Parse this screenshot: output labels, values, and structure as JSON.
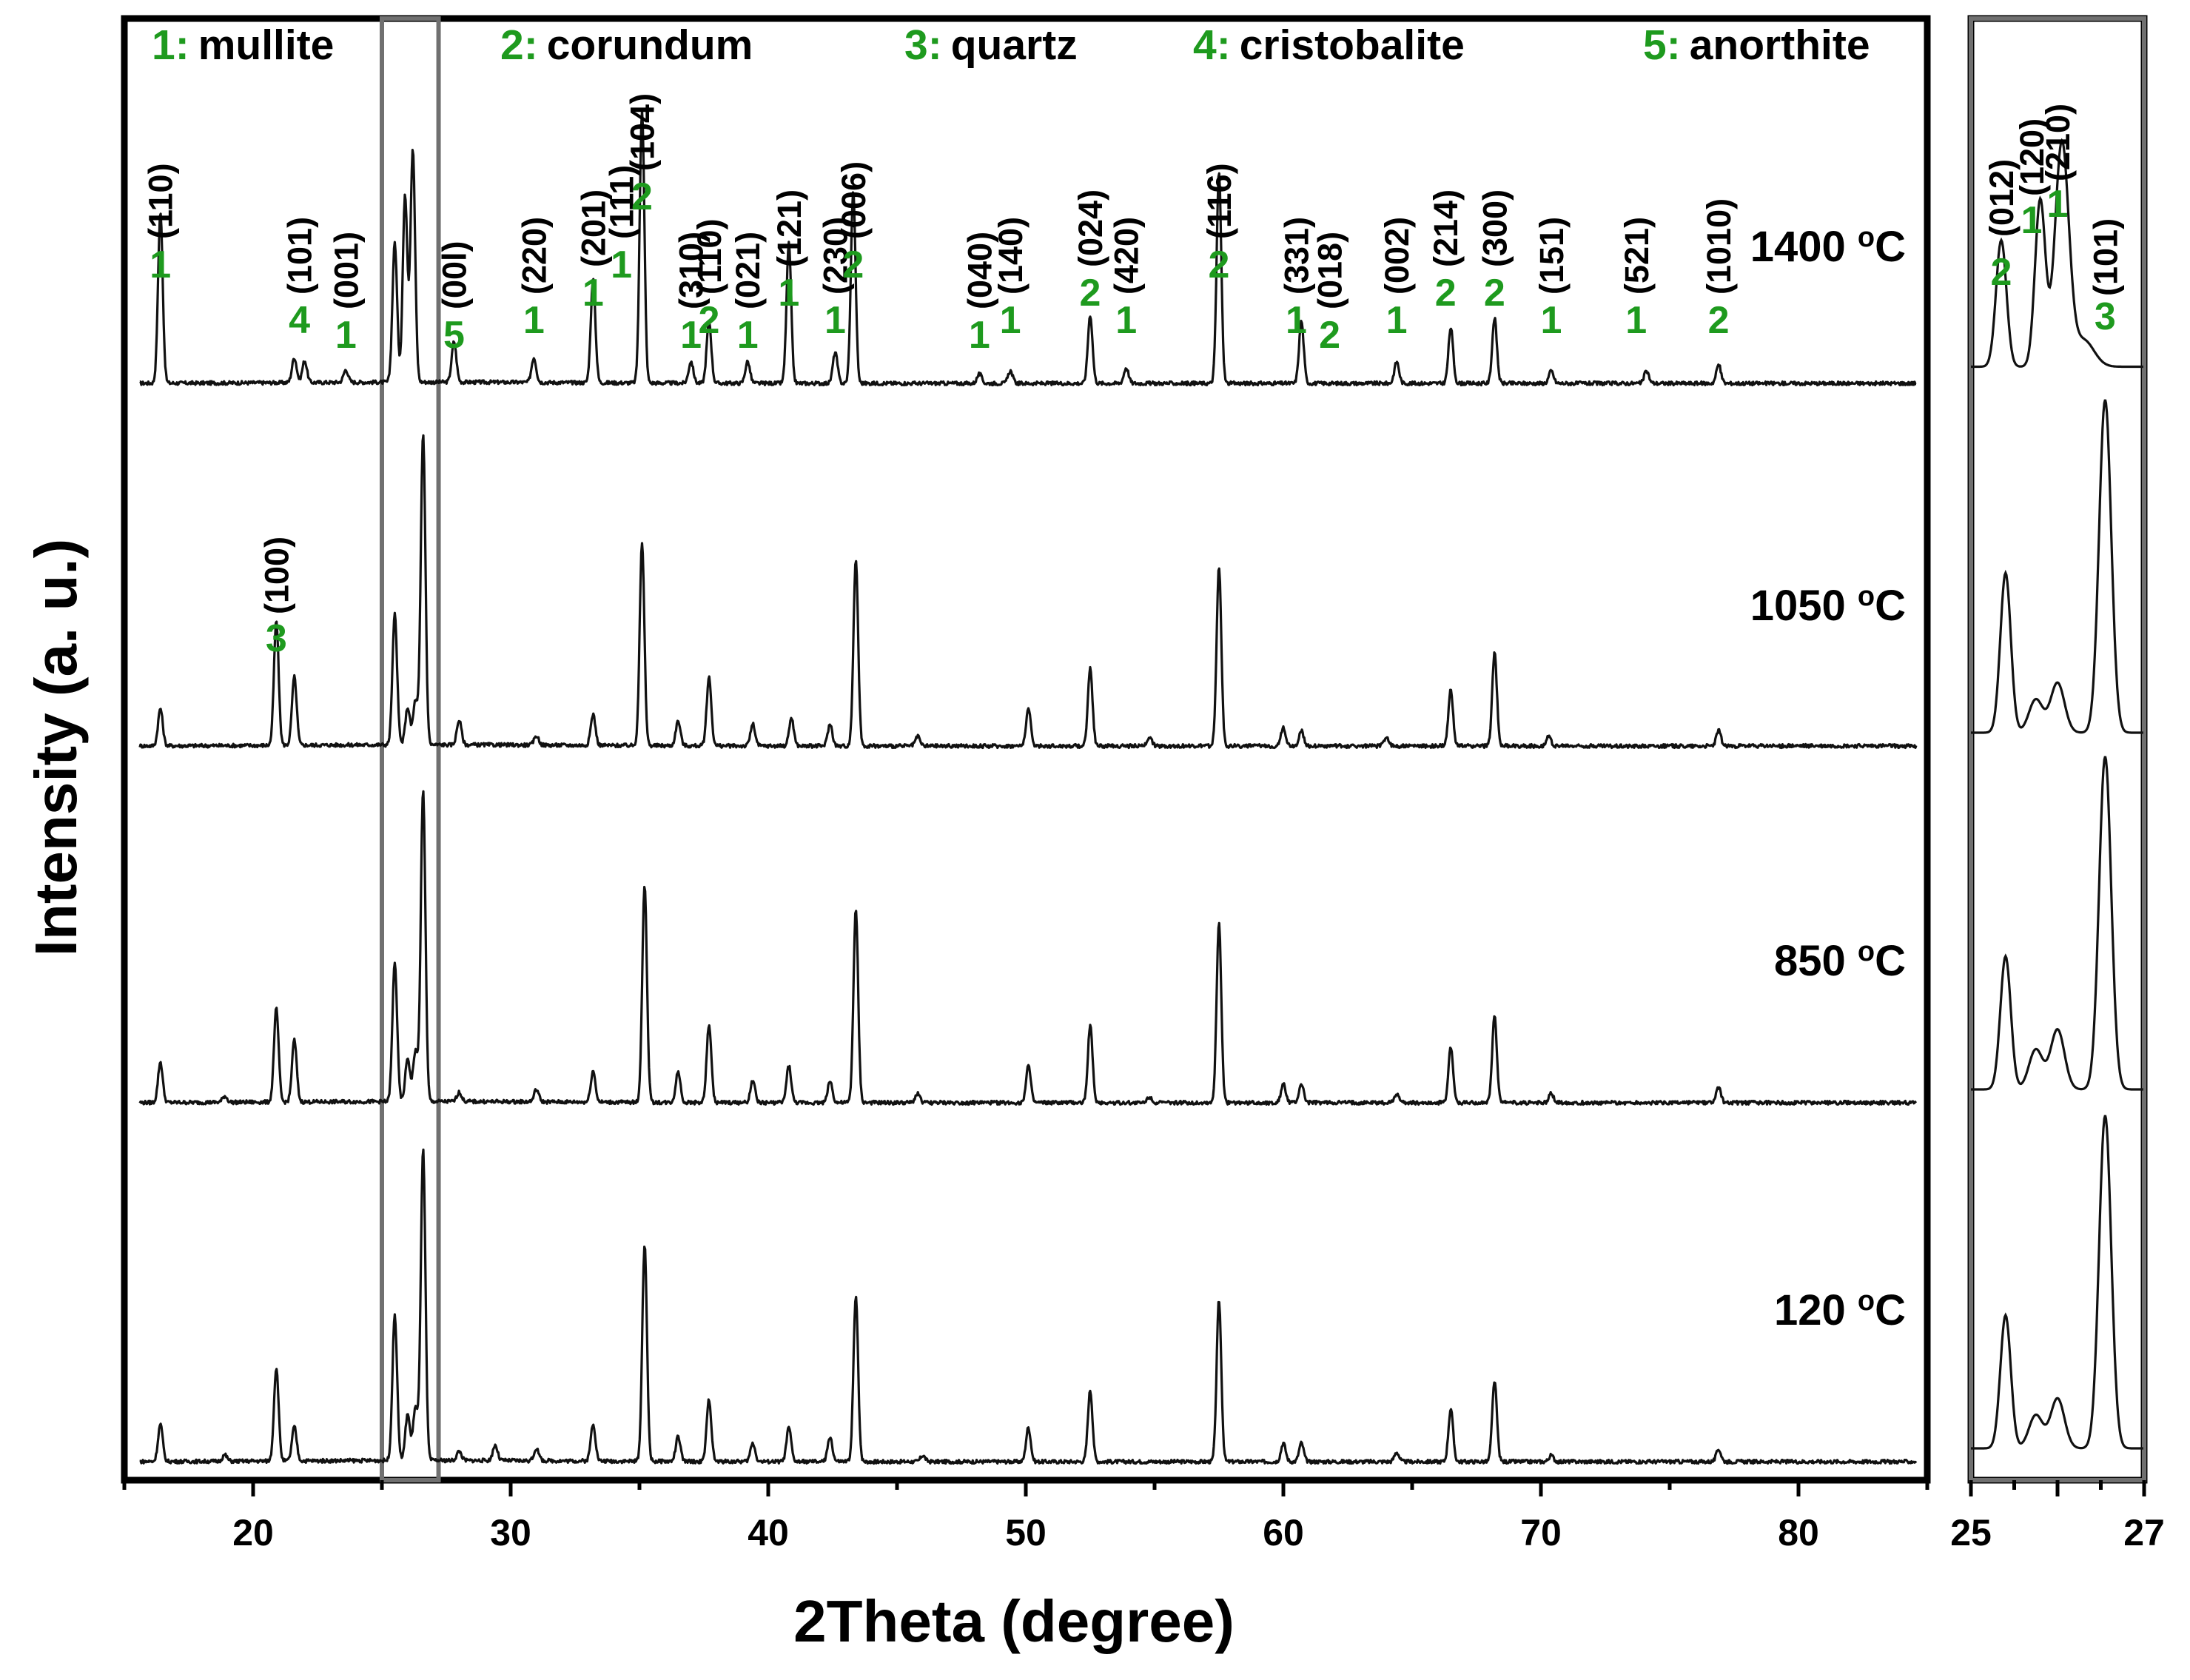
{
  "colors": {
    "trace": "#111111",
    "phase_label": "#1e9a1e",
    "text": "#000000",
    "frame": "#000000",
    "zoom_box": "#707070"
  },
  "axis_labels": {
    "x": "2Theta (degree)",
    "y": "Intensity (a. u.)"
  },
  "legend": [
    {
      "num": "1:",
      "name": "mullite"
    },
    {
      "num": "2:",
      "name": "corundum"
    },
    {
      "num": "3:",
      "name": "quartz"
    },
    {
      "num": "4:",
      "name": "cristobalite"
    },
    {
      "num": "5:",
      "name": "anorthite"
    }
  ],
  "chart_data": [
    {
      "type": "line",
      "title": "",
      "xlabel": "2Theta (degree)",
      "ylabel": "Intensity (a. u.)",
      "xlim": [
        15,
        85
      ],
      "x_ticks": [
        20,
        30,
        40,
        50,
        60,
        70,
        80
      ],
      "y_ticks_shown": false,
      "highlight_range": [
        25,
        27.2
      ],
      "series": [
        {
          "name": "1400 °C",
          "label_main": "1400 ",
          "label_sup": "o",
          "label_unit": "C",
          "peaks": [
            [
              16.4,
              0.55
            ],
            [
              21.6,
              0.08
            ],
            [
              22.0,
              0.07
            ],
            [
              23.6,
              0.04
            ],
            [
              25.5,
              0.45
            ],
            [
              25.9,
              0.6
            ],
            [
              26.2,
              0.75
            ],
            [
              27.8,
              0.13
            ],
            [
              30.9,
              0.08
            ],
            [
              33.2,
              0.33
            ],
            [
              35.1,
              0.88
            ],
            [
              37.0,
              0.07
            ],
            [
              37.7,
              0.2
            ],
            [
              39.2,
              0.07
            ],
            [
              40.8,
              0.45
            ],
            [
              42.6,
              0.1
            ],
            [
              43.3,
              0.62
            ],
            [
              48.2,
              0.03
            ],
            [
              49.4,
              0.04
            ],
            [
              52.5,
              0.22
            ],
            [
              53.9,
              0.05
            ],
            [
              57.5,
              0.68
            ],
            [
              60.7,
              0.2
            ],
            [
              64.4,
              0.07
            ],
            [
              66.5,
              0.18
            ],
            [
              68.2,
              0.21
            ],
            [
              70.4,
              0.04
            ],
            [
              74.1,
              0.04
            ],
            [
              76.9,
              0.06
            ]
          ]
        },
        {
          "name": "1050 °C",
          "label_main": "1050 ",
          "label_sup": "o",
          "label_unit": "C",
          "peaks": [
            [
              16.4,
              0.12
            ],
            [
              20.9,
              0.4
            ],
            [
              21.6,
              0.22
            ],
            [
              25.5,
              0.42
            ],
            [
              26.0,
              0.12
            ],
            [
              26.3,
              0.14
            ],
            [
              26.6,
              1.0
            ],
            [
              28.0,
              0.08
            ],
            [
              31.0,
              0.03
            ],
            [
              33.2,
              0.1
            ],
            [
              35.1,
              0.65
            ],
            [
              36.5,
              0.08
            ],
            [
              37.7,
              0.22
            ],
            [
              39.4,
              0.07
            ],
            [
              40.9,
              0.09
            ],
            [
              42.4,
              0.07
            ],
            [
              43.4,
              0.6
            ],
            [
              45.8,
              0.03
            ],
            [
              50.1,
              0.12
            ],
            [
              52.5,
              0.25
            ],
            [
              54.8,
              0.03
            ],
            [
              57.5,
              0.58
            ],
            [
              60.0,
              0.06
            ],
            [
              60.7,
              0.05
            ],
            [
              64.0,
              0.03
            ],
            [
              66.5,
              0.18
            ],
            [
              68.2,
              0.3
            ],
            [
              70.3,
              0.03
            ],
            [
              76.9,
              0.05
            ]
          ]
        },
        {
          "name": "850 °C",
          "label_main": "850 ",
          "label_sup": "o",
          "label_unit": "C",
          "peaks": [
            [
              16.4,
              0.13
            ],
            [
              18.9,
              0.02
            ],
            [
              20.9,
              0.3
            ],
            [
              21.6,
              0.2
            ],
            [
              25.5,
              0.45
            ],
            [
              26.0,
              0.14
            ],
            [
              26.3,
              0.16
            ],
            [
              26.6,
              1.0
            ],
            [
              28.0,
              0.03
            ],
            [
              31.0,
              0.04
            ],
            [
              33.2,
              0.1
            ],
            [
              35.2,
              0.7
            ],
            [
              36.5,
              0.1
            ],
            [
              37.7,
              0.25
            ],
            [
              39.4,
              0.07
            ],
            [
              40.8,
              0.12
            ],
            [
              42.4,
              0.07
            ],
            [
              43.4,
              0.62
            ],
            [
              45.8,
              0.03
            ],
            [
              50.1,
              0.12
            ],
            [
              52.5,
              0.25
            ],
            [
              54.8,
              0.02
            ],
            [
              57.5,
              0.58
            ],
            [
              60.0,
              0.06
            ],
            [
              60.7,
              0.06
            ],
            [
              64.4,
              0.03
            ],
            [
              66.5,
              0.18
            ],
            [
              68.2,
              0.28
            ],
            [
              70.4,
              0.03
            ],
            [
              76.9,
              0.05
            ]
          ]
        },
        {
          "name": "120 °C",
          "label_main": "120 ",
          "label_sup": "o",
          "label_unit": "C",
          "peaks": [
            [
              16.4,
              0.12
            ],
            [
              18.9,
              0.02
            ],
            [
              20.9,
              0.3
            ],
            [
              21.6,
              0.11
            ],
            [
              25.5,
              0.47
            ],
            [
              26.0,
              0.15
            ],
            [
              26.3,
              0.17
            ],
            [
              26.6,
              1.0
            ],
            [
              28.0,
              0.03
            ],
            [
              29.4,
              0.05
            ],
            [
              31.0,
              0.04
            ],
            [
              33.2,
              0.12
            ],
            [
              35.2,
              0.7
            ],
            [
              36.5,
              0.08
            ],
            [
              37.7,
              0.2
            ],
            [
              39.4,
              0.06
            ],
            [
              40.8,
              0.11
            ],
            [
              42.4,
              0.08
            ],
            [
              43.4,
              0.53
            ],
            [
              46.0,
              0.02
            ],
            [
              50.1,
              0.11
            ],
            [
              52.5,
              0.23
            ],
            [
              57.5,
              0.52
            ],
            [
              60.0,
              0.06
            ],
            [
              60.7,
              0.06
            ],
            [
              64.4,
              0.03
            ],
            [
              66.5,
              0.17
            ],
            [
              68.2,
              0.26
            ],
            [
              70.4,
              0.02
            ],
            [
              76.9,
              0.04
            ]
          ]
        }
      ],
      "annotations": [
        {
          "x": 16.4,
          "tier": 0,
          "phase": "1",
          "hkl": "(110)"
        },
        {
          "x": 21.8,
          "tier": 2,
          "phase": "4",
          "hkl": "(101)"
        },
        {
          "x": 23.6,
          "tier": 3,
          "phase": "1",
          "hkl": "(001)"
        },
        {
          "x": 27.8,
          "tier": 3,
          "phase": "5",
          "hkl": "(00l)"
        },
        {
          "x": 30.9,
          "tier": 2,
          "phase": "1",
          "hkl": "(220)"
        },
        {
          "x": 33.2,
          "tier": 1,
          "phase": "1",
          "hkl": "(201)"
        },
        {
          "x": 34.3,
          "tier": 0,
          "phase": "1",
          "hkl": "(111)"
        },
        {
          "x": 35.1,
          "tier": -1,
          "phase": "2",
          "hkl": "(104)"
        },
        {
          "x": 37.0,
          "tier": 3,
          "phase": "1",
          "hkl": "(310)"
        },
        {
          "x": 37.7,
          "tier": 2,
          "phase": "2",
          "hkl": "(110)"
        },
        {
          "x": 39.2,
          "tier": 3,
          "phase": "1",
          "hkl": "(021)"
        },
        {
          "x": 40.8,
          "tier": 1,
          "phase": "1",
          "hkl": "(121)"
        },
        {
          "x": 42.6,
          "tier": 2,
          "phase": "1",
          "hkl": "(230)"
        },
        {
          "x": 43.3,
          "tier": 0,
          "phase": "2",
          "hkl": "(006)"
        },
        {
          "x": 48.2,
          "tier": 3,
          "phase": "1",
          "hkl": "(040)"
        },
        {
          "x": 49.4,
          "tier": 2,
          "phase": "1",
          "hkl": "(140)"
        },
        {
          "x": 52.5,
          "tier": 1,
          "phase": "2",
          "hkl": "(024)"
        },
        {
          "x": 53.9,
          "tier": 2,
          "phase": "1",
          "hkl": "(420)"
        },
        {
          "x": 57.5,
          "tier": 0,
          "phase": "2",
          "hkl": "(116)"
        },
        {
          "x": 60.5,
          "tier": 2,
          "phase": "1",
          "hkl": "(331)"
        },
        {
          "x": 61.8,
          "tier": 3,
          "phase": "2",
          "hkl": "(018)"
        },
        {
          "x": 64.4,
          "tier": 2,
          "phase": "1",
          "hkl": "(002)"
        },
        {
          "x": 66.3,
          "tier": 1,
          "phase": "2",
          "hkl": "(214)"
        },
        {
          "x": 68.2,
          "tier": 1,
          "phase": "2",
          "hkl": "(300)"
        },
        {
          "x": 70.4,
          "tier": 2,
          "phase": "1",
          "hkl": "(151)"
        },
        {
          "x": 73.7,
          "tier": 2,
          "phase": "1",
          "hkl": "(521)"
        },
        {
          "x": 76.9,
          "tier": 2,
          "phase": "2",
          "hkl": "(1010)"
        },
        {
          "x": 20.9,
          "tier": "quartz",
          "phase": "3",
          "hkl": "(100)"
        }
      ]
    },
    {
      "type": "line",
      "title": "",
      "xlabel": "",
      "xlim": [
        25,
        27
      ],
      "x_ticks": [
        25,
        27
      ],
      "y_ticks_shown": false,
      "series": [
        {
          "name": "1400 °C",
          "baseline": 0.05,
          "peaks": [
            [
              25.35,
              0.38,
              0.06
            ],
            [
              25.8,
              0.5,
              0.06
            ],
            [
              26.05,
              0.67,
              0.08
            ],
            [
              26.3,
              0.08,
              0.12
            ]
          ]
        },
        {
          "name": "1050 °C",
          "baseline": 0.04,
          "peaks": [
            [
              25.4,
              0.48,
              0.06
            ],
            [
              25.75,
              0.1,
              0.08
            ],
            [
              26.0,
              0.15,
              0.08
            ],
            [
              26.55,
              1.0,
              0.07
            ]
          ]
        },
        {
          "name": "850 °C",
          "baseline": 0.04,
          "peaks": [
            [
              25.4,
              0.4,
              0.06
            ],
            [
              25.75,
              0.12,
              0.08
            ],
            [
              26.0,
              0.18,
              0.08
            ],
            [
              26.55,
              1.0,
              0.07
            ]
          ]
        },
        {
          "name": "120 °C",
          "baseline": 0.04,
          "peaks": [
            [
              25.4,
              0.4,
              0.06
            ],
            [
              25.75,
              0.1,
              0.08
            ],
            [
              26.0,
              0.15,
              0.08
            ],
            [
              26.55,
              1.0,
              0.07
            ]
          ]
        }
      ],
      "annotations": [
        {
          "x": 25.35,
          "phase": "2",
          "hkl": "(012)"
        },
        {
          "x": 25.7,
          "phase": "1",
          "hkl": "(120)"
        },
        {
          "x": 26.0,
          "phase": "1",
          "hkl": "(210)"
        },
        {
          "x": 26.55,
          "phase": "3",
          "hkl": "(101)"
        }
      ]
    }
  ]
}
